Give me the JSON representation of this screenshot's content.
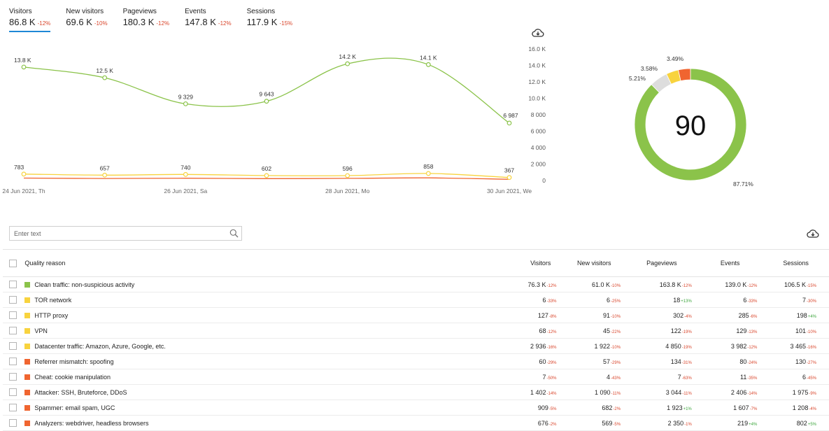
{
  "colors": {
    "accent": "#1e88d6",
    "green": "#8bc34a",
    "yellow": "#f8d33e",
    "orange": "#f06530",
    "grey": "#dddddd",
    "negative": "#d9462c",
    "positive": "#3ea63e"
  },
  "metric_tabs": [
    {
      "label": "Visitors",
      "value": "86.8 K",
      "change": "-12%",
      "active": true
    },
    {
      "label": "New visitors",
      "value": "69.6 K",
      "change": "-10%",
      "active": false
    },
    {
      "label": "Pageviews",
      "value": "180.3 K",
      "change": "-12%",
      "active": false
    },
    {
      "label": "Events",
      "value": "147.8 K",
      "change": "-12%",
      "active": false
    },
    {
      "label": "Sessions",
      "value": "117.9 K",
      "change": "-15%",
      "active": false
    }
  ],
  "icons": {
    "download": "cloud-download-icon",
    "search": "search-icon",
    "checkbox": "checkbox-icon"
  },
  "chart_data": [
    {
      "type": "line",
      "x": [
        "24 Jun 2021, Th",
        "25 Jun 2021",
        "26 Jun 2021, Sa",
        "27 Jun 2021",
        "28 Jun 2021, Mo",
        "29 Jun 2021",
        "30 Jun 2021, We"
      ],
      "x_tick_labels": [
        "24 Jun 2021, Th",
        "26 Jun 2021, Sa",
        "28 Jun 2021, Mo",
        "30 Jun 2021, We"
      ],
      "y_ticks": [
        "16.0 K",
        "14.0 K",
        "12.0 K",
        "10.0 K",
        "8 000",
        "6 000",
        "4 000",
        "2 000",
        "0"
      ],
      "ylim": [
        0,
        16000
      ],
      "grid": false,
      "series": [
        {
          "color": "#8bc34a",
          "values": [
            13800,
            12500,
            9329,
            9643,
            14200,
            14100,
            6987
          ],
          "labels": [
            "13.8 K",
            "12.5 K",
            "9 329",
            "9 643",
            "14.2 K",
            "14.1 K",
            "6 987"
          ]
        },
        {
          "color": "#f8d33e",
          "values": [
            783,
            657,
            740,
            602,
            596,
            858,
            367
          ],
          "labels": [
            "783",
            "657",
            "740",
            "602",
            "596",
            "858",
            "367"
          ]
        },
        {
          "color": "#f06530",
          "values": [
            300,
            250,
            280,
            230,
            260,
            320,
            150
          ],
          "labels": []
        }
      ]
    },
    {
      "type": "pie",
      "center_text": "90",
      "slices": [
        {
          "value": 87.71,
          "label": "87.71%",
          "color": "#8bc34a"
        },
        {
          "value": 5.21,
          "label": "5.21%",
          "color": "#dddddd"
        },
        {
          "value": 3.58,
          "label": "3.58%",
          "color": "#f8d33e"
        },
        {
          "value": 3.49,
          "label": "3.49%",
          "color": "#f06530"
        }
      ]
    }
  ],
  "search": {
    "placeholder": "Enter text"
  },
  "table": {
    "headers": {
      "reason": "Quality reason",
      "visitors": "Visitors",
      "new_visitors": "New visitors",
      "pageviews": "Pageviews",
      "events": "Events",
      "sessions": "Sessions"
    },
    "rows": [
      {
        "color": "#8bc34a",
        "reason": "Clean traffic: non-suspicious activity",
        "cells": [
          [
            "76.3 K",
            "-12%",
            "neg"
          ],
          [
            "61.0 K",
            "-10%",
            "neg"
          ],
          [
            "163.8 K",
            "-12%",
            "neg"
          ],
          [
            "139.0 K",
            "-12%",
            "neg"
          ],
          [
            "106.5 K",
            "-15%",
            "neg"
          ]
        ]
      },
      {
        "color": "#f8d33e",
        "reason": "TOR network",
        "cells": [
          [
            "6",
            "-33%",
            "neg"
          ],
          [
            "6",
            "-25%",
            "neg"
          ],
          [
            "18",
            "+13%",
            "pos"
          ],
          [
            "6",
            "-33%",
            "neg"
          ],
          [
            "7",
            "-30%",
            "neg"
          ]
        ]
      },
      {
        "color": "#f8d33e",
        "reason": "HTTP proxy",
        "cells": [
          [
            "127",
            "-8%",
            "neg"
          ],
          [
            "91",
            "-10%",
            "neg"
          ],
          [
            "302",
            "-4%",
            "neg"
          ],
          [
            "285",
            "-6%",
            "neg"
          ],
          [
            "198",
            "+4%",
            "pos"
          ]
        ]
      },
      {
        "color": "#f8d33e",
        "reason": "VPN",
        "cells": [
          [
            "68",
            "-12%",
            "neg"
          ],
          [
            "45",
            "-22%",
            "neg"
          ],
          [
            "122",
            "-19%",
            "neg"
          ],
          [
            "129",
            "-13%",
            "neg"
          ],
          [
            "101",
            "-10%",
            "neg"
          ]
        ]
      },
      {
        "color": "#f8d33e",
        "reason": "Datacenter traffic: Amazon, Azure, Google, etc.",
        "cells": [
          [
            "2 936",
            "-16%",
            "neg"
          ],
          [
            "1 922",
            "-10%",
            "neg"
          ],
          [
            "4 850",
            "-19%",
            "neg"
          ],
          [
            "3 982",
            "-12%",
            "neg"
          ],
          [
            "3 465",
            "-16%",
            "neg"
          ]
        ]
      },
      {
        "color": "#f06530",
        "reason": "Referrer mismatch: spoofing",
        "cells": [
          [
            "60",
            "-29%",
            "neg"
          ],
          [
            "57",
            "-29%",
            "neg"
          ],
          [
            "134",
            "-31%",
            "neg"
          ],
          [
            "80",
            "-24%",
            "neg"
          ],
          [
            "130",
            "-27%",
            "neg"
          ]
        ]
      },
      {
        "color": "#f06530",
        "reason": "Cheat: cookie manipulation",
        "cells": [
          [
            "7",
            "-50%",
            "neg"
          ],
          [
            "4",
            "-43%",
            "neg"
          ],
          [
            "7",
            "-63%",
            "neg"
          ],
          [
            "11",
            "-35%",
            "neg"
          ],
          [
            "6",
            "-45%",
            "neg"
          ]
        ]
      },
      {
        "color": "#f06530",
        "reason": "Attacker: SSH, Bruteforce, DDoS",
        "cells": [
          [
            "1 402",
            "-14%",
            "neg"
          ],
          [
            "1 090",
            "-11%",
            "neg"
          ],
          [
            "3 044",
            "-11%",
            "neg"
          ],
          [
            "2 406",
            "-14%",
            "neg"
          ],
          [
            "1 975",
            "-9%",
            "neg"
          ]
        ]
      },
      {
        "color": "#f06530",
        "reason": "Spammer: email spam, UGC",
        "cells": [
          [
            "909",
            "-5%",
            "neg"
          ],
          [
            "682",
            "-2%",
            "neg"
          ],
          [
            "1 923",
            "+1%",
            "pos"
          ],
          [
            "1 607",
            "-7%",
            "neg"
          ],
          [
            "1 208",
            "-4%",
            "neg"
          ]
        ]
      },
      {
        "color": "#f06530",
        "reason": "Analyzers: webdriver, headless browsers",
        "cells": [
          [
            "676",
            "-2%",
            "neg"
          ],
          [
            "569",
            "-5%",
            "neg"
          ],
          [
            "2 350",
            "-1%",
            "neg"
          ],
          [
            "219",
            "+4%",
            "pos"
          ],
          [
            "802",
            "+5%",
            "pos"
          ]
        ]
      }
    ]
  }
}
